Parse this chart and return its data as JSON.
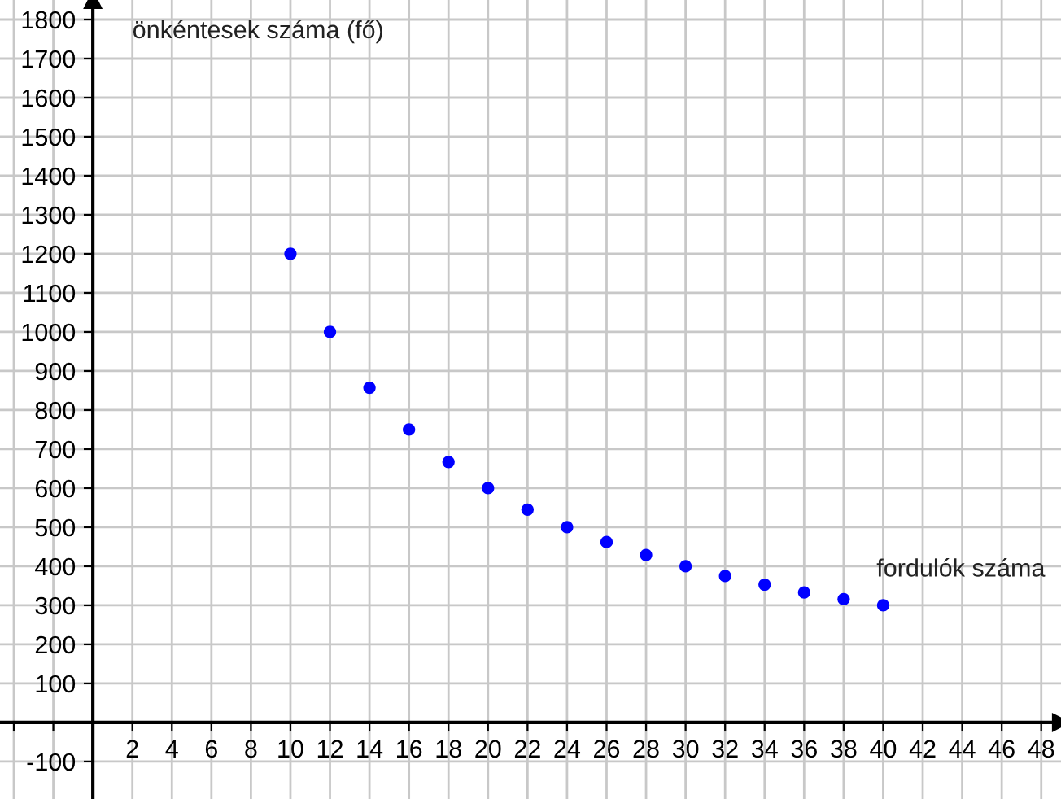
{
  "chart_data": {
    "type": "scatter",
    "xlabel": "fordulók száma",
    "ylabel": "önkéntesek száma (fő)",
    "x": [
      10,
      12,
      14,
      16,
      18,
      20,
      22,
      24,
      26,
      28,
      30,
      32,
      34,
      36,
      38,
      40
    ],
    "series": [
      {
        "color": "#0000ff",
        "values": [
          1200,
          1000,
          857,
          750,
          667,
          600,
          545,
          500,
          462,
          429,
          400,
          375,
          353,
          333,
          316,
          300
        ]
      }
    ],
    "xlim": [
      -4.7,
      49
    ],
    "ylim": [
      -196,
      1850
    ],
    "xticks": [
      {
        "value": -4,
        "label": null
      },
      {
        "value": -2,
        "label": null
      },
      2,
      4,
      6,
      8,
      10,
      12,
      14,
      16,
      18,
      20,
      22,
      24,
      26,
      28,
      30,
      32,
      34,
      36,
      38,
      40,
      42,
      44,
      46,
      48
    ],
    "yticks": [
      -100,
      100,
      200,
      300,
      400,
      500,
      600,
      700,
      800,
      900,
      1000,
      1100,
      1200,
      1300,
      1400,
      1500,
      1600,
      1700,
      1800
    ],
    "grid": true,
    "marker": "circle"
  }
}
